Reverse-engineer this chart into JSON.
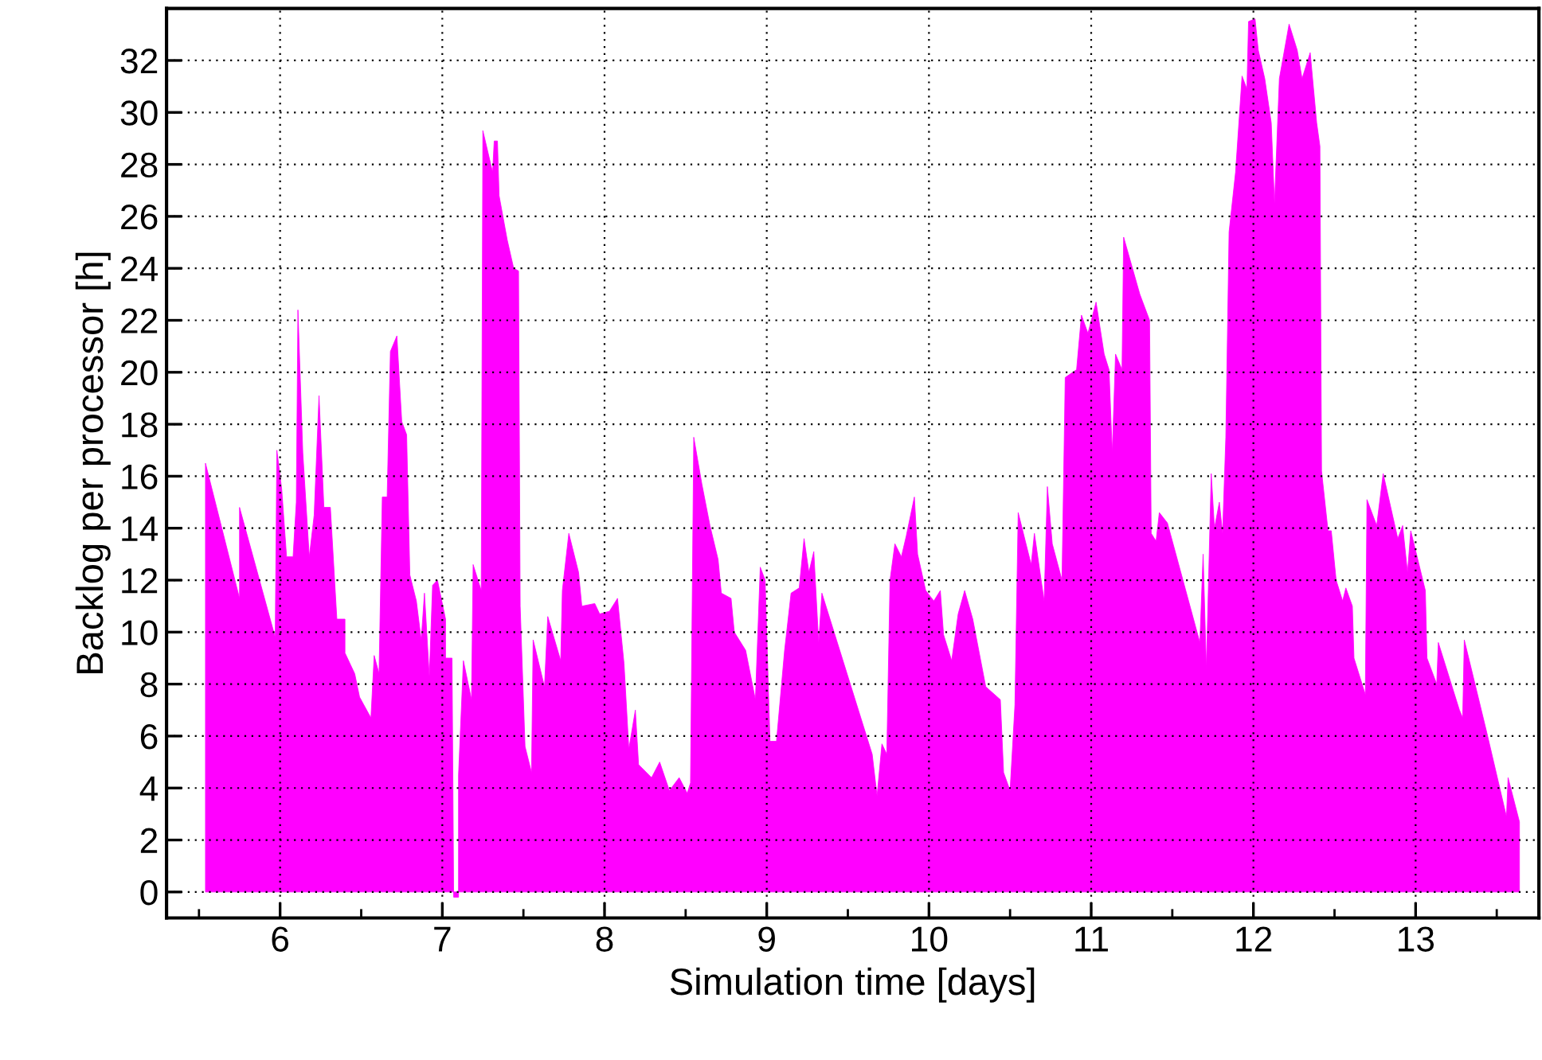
{
  "chart_data": {
    "type": "area",
    "xlabel": "Simulation time [days]",
    "ylabel": "Backlog per processor [h]",
    "xlim": [
      5.3,
      13.76
    ],
    "ylim": [
      -1,
      34
    ],
    "xticks": [
      {
        "value": 5.5,
        "label": null
      },
      6,
      {
        "value": 6.5,
        "label": null
      },
      7,
      {
        "value": 7.5,
        "label": null
      },
      8,
      {
        "value": 8.5,
        "label": null
      },
      9,
      {
        "value": 9.5,
        "label": null
      },
      10,
      {
        "value": 10.5,
        "label": null
      },
      11,
      {
        "value": 11.5,
        "label": null
      },
      12,
      {
        "value": 12.5,
        "label": null
      },
      13,
      {
        "value": 13.5,
        "label": null
      }
    ],
    "yticks": [
      0,
      2,
      4,
      6,
      8,
      10,
      12,
      14,
      16,
      18,
      20,
      22,
      24,
      26,
      28,
      30,
      32
    ],
    "grid": true,
    "series": [
      {
        "color": "#ff00ff",
        "x": [
          5.54,
          5.54,
          5.75,
          5.75,
          5.97,
          5.98,
          6.01,
          6.04,
          6.08,
          6.1,
          6.11,
          6.14,
          6.18,
          6.21,
          6.24,
          6.27,
          6.31,
          6.35,
          6.4,
          6.4,
          6.46,
          6.49,
          6.56,
          6.58,
          6.61,
          6.63,
          6.66,
          6.68,
          6.72,
          6.75,
          6.78,
          6.8,
          6.84,
          6.87,
          6.89,
          6.92,
          6.94,
          6.97,
          7.02,
          7.02,
          7.06,
          7.07,
          7.1,
          7.1,
          7.13,
          7.18,
          7.19,
          7.24,
          7.25,
          7.31,
          7.32,
          7.34,
          7.35,
          7.4,
          7.44,
          7.47,
          7.48,
          7.51,
          7.55,
          7.56,
          7.63,
          7.65,
          7.73,
          7.74,
          7.78,
          7.84,
          7.86,
          7.94,
          7.97,
          8.03,
          8.08,
          8.12,
          8.15,
          8.19,
          8.21,
          8.29,
          8.34,
          8.4,
          8.46,
          8.51,
          8.53,
          8.55,
          8.6,
          8.65,
          8.7,
          8.72,
          8.78,
          8.8,
          8.87,
          8.93,
          8.96,
          8.99,
          9.02,
          9.06,
          9.11,
          9.15,
          9.2,
          9.23,
          9.26,
          9.29,
          9.32,
          9.34,
          9.65,
          9.68,
          9.71,
          9.74,
          9.76,
          9.79,
          9.83,
          9.86,
          9.91,
          9.93,
          9.98,
          10.03,
          10.07,
          10.09,
          10.14,
          10.18,
          10.22,
          10.27,
          10.35,
          10.44,
          10.46,
          10.5,
          10.53,
          10.55,
          10.63,
          10.65,
          10.71,
          10.73,
          10.76,
          10.82,
          10.84,
          10.91,
          10.94,
          10.98,
          11.03,
          11.08,
          11.11,
          11.13,
          11.15,
          11.19,
          11.2,
          11.3,
          11.36,
          11.37,
          11.4,
          11.42,
          11.47,
          11.67,
          11.69,
          11.71,
          11.74,
          11.76,
          11.79,
          11.81,
          11.83,
          11.85,
          11.89,
          11.93,
          11.96,
          11.97,
          12.01,
          12.03,
          12.07,
          12.11,
          12.13,
          12.16,
          12.22,
          12.27,
          12.3,
          12.35,
          12.39,
          12.41,
          12.42,
          12.46,
          12.48,
          12.51,
          12.55,
          12.57,
          12.61,
          12.62,
          12.69,
          12.7,
          12.76,
          12.8,
          12.89,
          12.92,
          12.95,
          12.97,
          13.06,
          13.07,
          13.13,
          13.14,
          13.27,
          13.29,
          13.3,
          13.44,
          13.56,
          13.57,
          13.64,
          13.64
        ],
        "values": [
          0,
          16.5,
          11.3,
          14.8,
          9.8,
          17.0,
          15.5,
          12.9,
          12.9,
          15.0,
          22.4,
          16.9,
          12.9,
          14.5,
          19.1,
          14.8,
          14.8,
          10.5,
          10.5,
          9.2,
          8.4,
          7.5,
          6.7,
          9.1,
          8.4,
          15.2,
          15.2,
          20.8,
          21.4,
          18.1,
          17.6,
          12.2,
          11.2,
          9.7,
          11.5,
          8.3,
          11.8,
          12.0,
          10.5,
          9.0,
          9.0,
          -0.2,
          -0.2,
          4.5,
          8.9,
          7.4,
          12.6,
          11.6,
          29.3,
          27.7,
          28.9,
          28.9,
          26.8,
          25.1,
          24.0,
          23.9,
          11.0,
          5.6,
          4.6,
          9.7,
          7.9,
          10.6,
          8.9,
          11.6,
          13.8,
          12.3,
          11.0,
          11.1,
          10.7,
          10.8,
          11.3,
          8.8,
          5.5,
          7.0,
          4.9,
          4.4,
          5.0,
          3.9,
          4.4,
          3.8,
          4.2,
          17.5,
          15.7,
          14.1,
          12.8,
          11.5,
          11.3,
          10.0,
          9.3,
          7.4,
          12.5,
          12.0,
          5.8,
          5.8,
          9.3,
          11.5,
          11.7,
          13.6,
          12.3,
          13.1,
          9.6,
          11.5,
          5.3,
          3.7,
          5.7,
          5.3,
          12.0,
          13.4,
          12.9,
          13.7,
          15.2,
          13.0,
          11.6,
          11.2,
          11.6,
          9.9,
          8.9,
          10.7,
          11.6,
          10.5,
          7.9,
          7.4,
          4.6,
          3.9,
          7.2,
          14.6,
          12.6,
          13.8,
          11.2,
          15.6,
          13.4,
          12.0,
          19.8,
          20.1,
          22.2,
          21.5,
          22.7,
          20.7,
          20.1,
          16.9,
          20.7,
          20.1,
          25.2,
          23.0,
          22.0,
          13.8,
          13.5,
          14.6,
          14.2,
          9.6,
          13.0,
          8.6,
          16.1,
          14.0,
          15.0,
          13.8,
          17.5,
          25.4,
          27.7,
          31.4,
          30.9,
          33.5,
          33.6,
          32.4,
          31.3,
          29.6,
          26.5,
          31.3,
          33.4,
          32.4,
          31.3,
          32.3,
          29.6,
          28.7,
          16.2,
          13.9,
          13.9,
          12.0,
          11.2,
          11.7,
          11.0,
          9.0,
          7.6,
          15.1,
          14.1,
          16.1,
          13.6,
          14.1,
          12.3,
          13.9,
          11.6,
          9.0,
          8.0,
          9.6,
          7.0,
          6.7,
          9.7,
          6.1,
          2.9,
          4.4,
          2.7,
          0
        ]
      }
    ]
  }
}
